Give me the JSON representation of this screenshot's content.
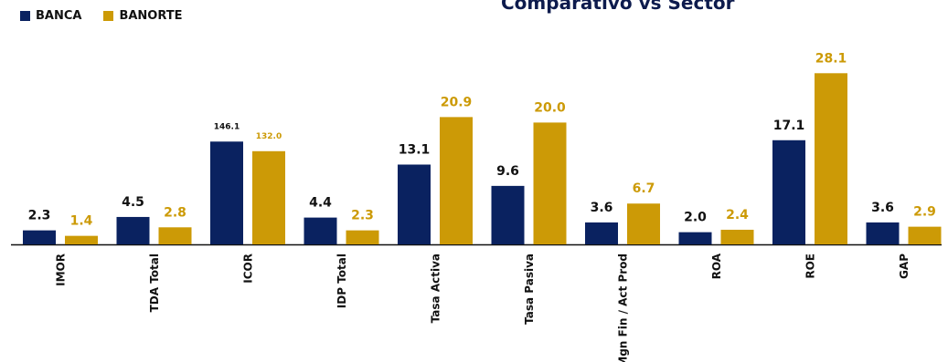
{
  "colors": {
    "banca": "#0a2260",
    "banorte": "#cc9a06",
    "axis": "#111111",
    "label_dark": "#111111"
  },
  "chart_data": {
    "type": "bar",
    "title": "Comparativo vs Sector",
    "legend_position": "top-left",
    "grid": false,
    "categories": [
      "IMOR",
      "TDA Total",
      "ICOR",
      "IDP Total",
      "Tasa Activa",
      "Tasa Pasiva",
      "Mgn Fin / Act Prod",
      "ROA",
      "ROE",
      "GAP"
    ],
    "series": [
      {
        "name": "BANCA",
        "values": [
          2.3,
          4.5,
          146.1,
          4.4,
          13.1,
          9.6,
          3.6,
          2.0,
          17.1,
          3.6
        ],
        "labels": [
          "2.3",
          "4.5",
          "146.1",
          "4.4",
          "13.1",
          "9.6",
          "3.6",
          "2.0",
          "17.1",
          "3.6"
        ]
      },
      {
        "name": "BANORTE",
        "values": [
          1.4,
          2.8,
          132.0,
          2.3,
          20.9,
          20.0,
          6.7,
          2.4,
          28.1,
          2.9
        ],
        "labels": [
          "1.4",
          "2.8",
          "132.0",
          "2.3",
          "20.9",
          "20.0",
          "6.7",
          "2.4",
          "28.1",
          "2.9"
        ]
      }
    ]
  }
}
